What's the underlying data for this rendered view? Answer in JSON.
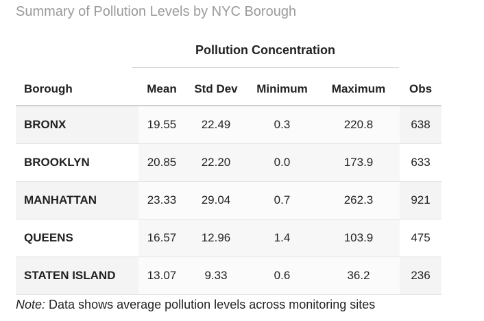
{
  "title": "Summary of Pollution Levels by NYC Borough",
  "spanner_label": "Pollution Concentration",
  "columns": {
    "borough": "Borough",
    "mean": "Mean",
    "sd": "Std Dev",
    "min": "Minimum",
    "max": "Maximum",
    "obs": "Obs"
  },
  "rows": [
    {
      "borough": "BRONX",
      "mean": "19.55",
      "sd": "22.49",
      "min": "0.3",
      "max": "220.8",
      "obs": "638"
    },
    {
      "borough": "BROOKLYN",
      "mean": "20.85",
      "sd": "22.20",
      "min": "0.0",
      "max": "173.9",
      "obs": "633"
    },
    {
      "borough": "MANHATTAN",
      "mean": "23.33",
      "sd": "29.04",
      "min": "0.7",
      "max": "262.3",
      "obs": "921"
    },
    {
      "borough": "QUEENS",
      "mean": "16.57",
      "sd": "12.96",
      "min": "1.4",
      "max": "103.9",
      "obs": "475"
    },
    {
      "borough": "STATEN ISLAND",
      "mean": "13.07",
      "sd": "9.33",
      "min": "0.6",
      "max": "36.2",
      "obs": "236"
    }
  ],
  "note": {
    "label": "Note:",
    "text": " Data shows average pollution levels across monitoring sites"
  }
}
